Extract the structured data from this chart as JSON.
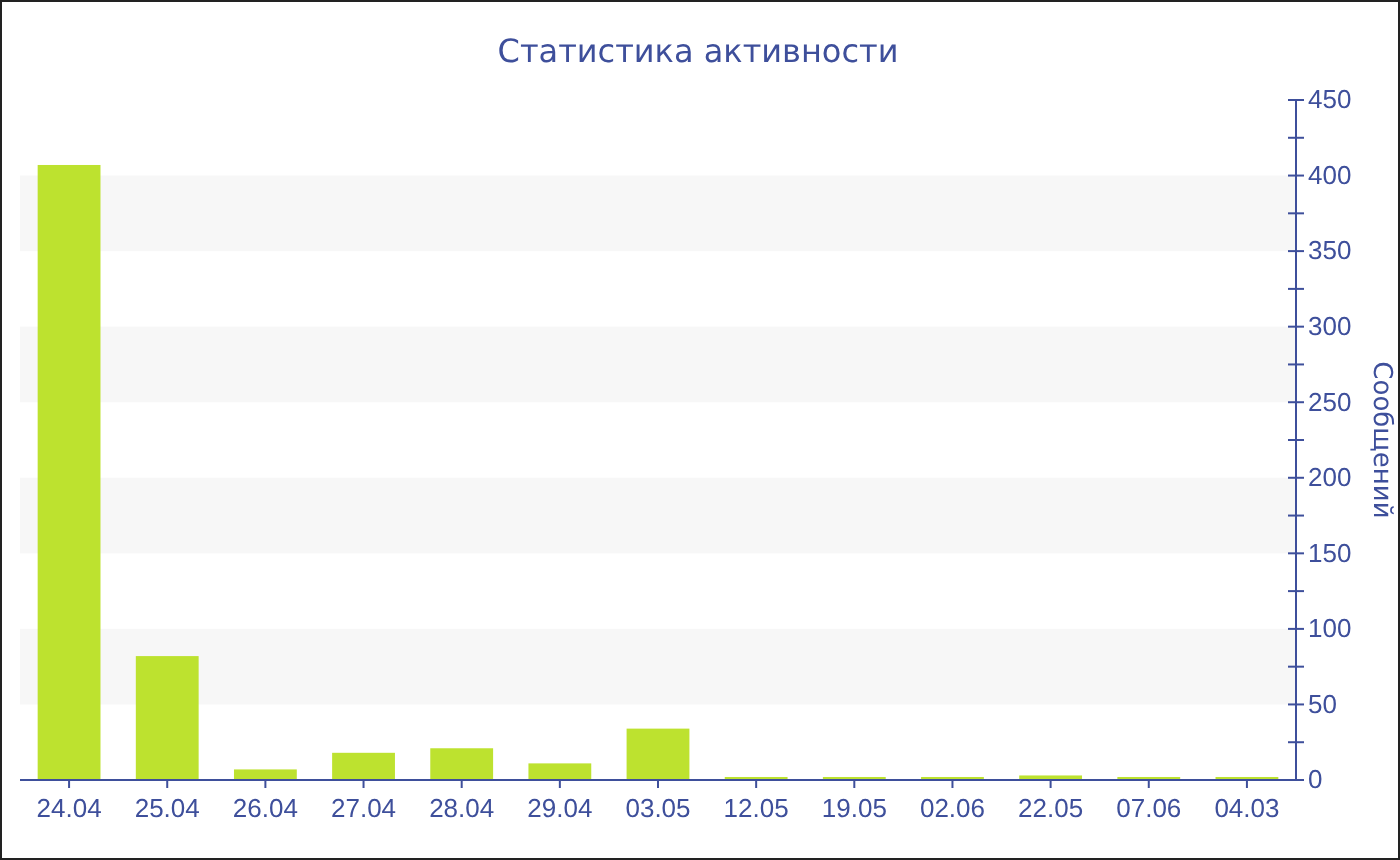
{
  "chart_data": {
    "type": "bar",
    "title": "Статистика активности",
    "ylabel": "Сообщений",
    "categories": [
      "24.04",
      "25.04",
      "26.04",
      "27.04",
      "28.04",
      "29.04",
      "03.05",
      "12.05",
      "19.05",
      "02.06",
      "22.05",
      "07.06",
      "04.03"
    ],
    "values": [
      407,
      82,
      7,
      18,
      21,
      11,
      34,
      2,
      2,
      2,
      3,
      2,
      2
    ],
    "color": "#bde22f",
    "ylim": [
      0,
      450
    ],
    "yticks": [
      0,
      {
        "value": 25,
        "label": null
      },
      50,
      {
        "value": 75,
        "label": null
      },
      100,
      {
        "value": 125,
        "label": null
      },
      150,
      {
        "value": 175,
        "label": null
      },
      200,
      {
        "value": 225,
        "label": null
      },
      250,
      {
        "value": 275,
        "label": null
      },
      300,
      {
        "value": 325,
        "label": null
      },
      350,
      {
        "value": 375,
        "label": null
      },
      400,
      {
        "value": 425,
        "label": null
      },
      450
    ],
    "bands": [
      {
        "axis": "y",
        "from": 50,
        "to": 100,
        "color": "#f7f7f7"
      },
      {
        "axis": "y",
        "from": 150,
        "to": 200,
        "color": "#f7f7f7"
      },
      {
        "axis": "y",
        "from": 250,
        "to": 300,
        "color": "#f7f7f7"
      },
      {
        "axis": "y",
        "from": 350,
        "to": 400,
        "color": "#f7f7f7"
      }
    ],
    "grid": false
  }
}
